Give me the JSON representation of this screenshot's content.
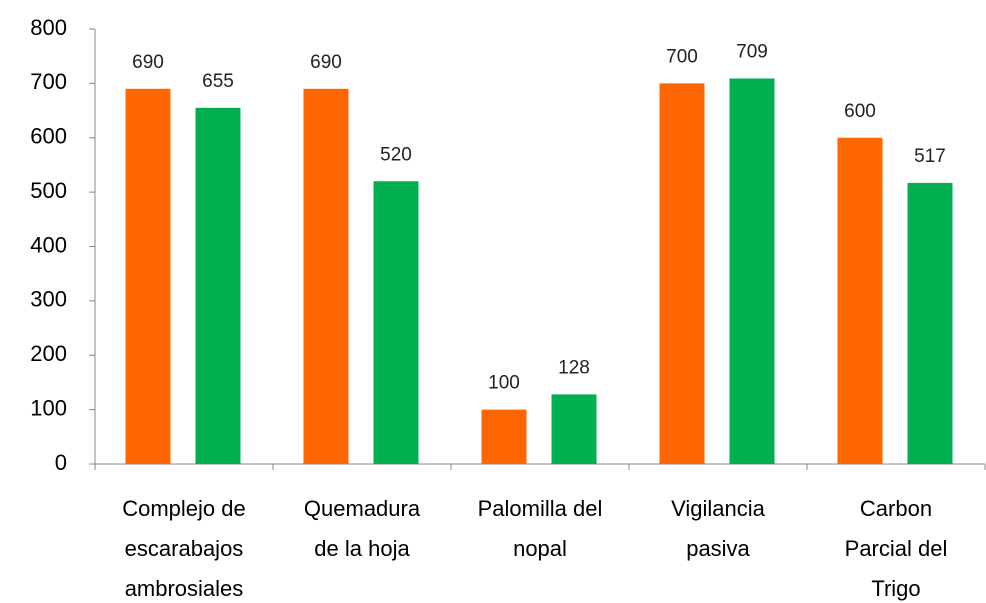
{
  "chart_data": {
    "type": "bar",
    "categories": [
      "Complejo de\nescarabajos\nambrosiales",
      "Quemadura\nde la hoja",
      "Palomilla del\nnopal",
      "Vigilancia\npasiva",
      "Carbon\nParcial del\nTrigo"
    ],
    "series": [
      {
        "color": "#ff6600",
        "values": [
          690,
          690,
          100,
          700,
          600
        ]
      },
      {
        "color": "#00b050",
        "values": [
          655,
          520,
          128,
          709,
          517
        ]
      }
    ],
    "ylim": [
      0,
      800
    ],
    "yticks": [
      0,
      100,
      200,
      300,
      400,
      500,
      600,
      700,
      800
    ],
    "grid": false
  }
}
